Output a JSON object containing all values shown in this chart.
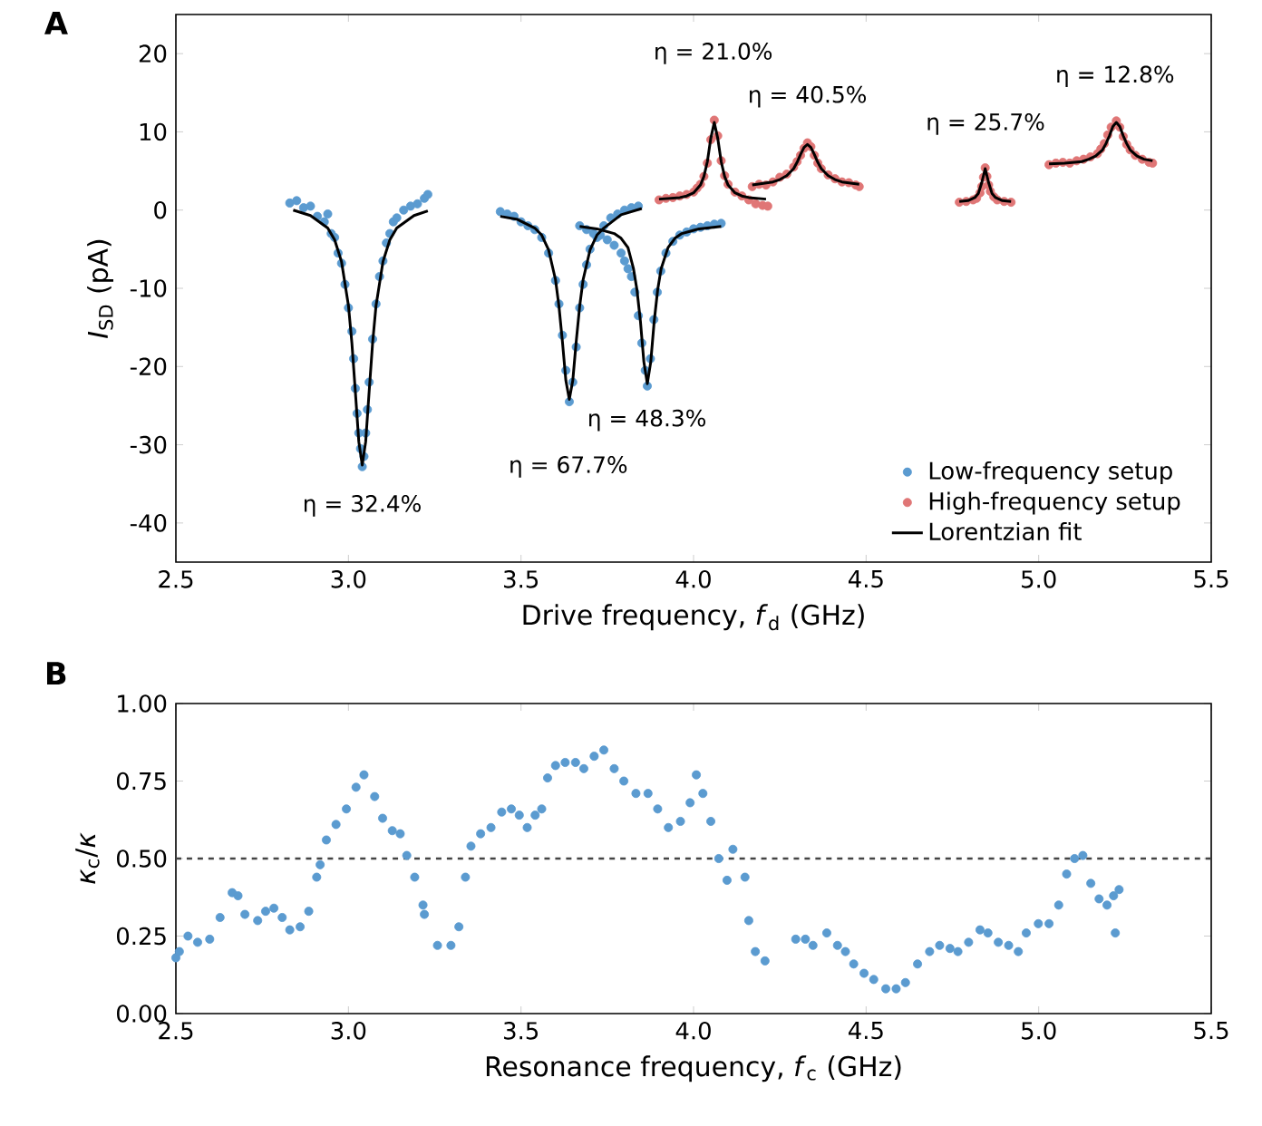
{
  "chart_data": [
    {
      "type": "scatter",
      "title": "A",
      "xlabel": "Drive frequency, *f*$_{d}$ (GHz)",
      "ylabel": "*I*$_{SD}$ (pA)",
      "xlim": [
        2.5,
        5.5
      ],
      "ylim": [
        -45,
        25
      ],
      "xticks": [
        2.5,
        {
          "value": 3,
          "label": "3.0"
        },
        3.5,
        {
          "value": 4,
          "label": "4.0"
        },
        4.5,
        {
          "value": 5,
          "label": "5.0"
        },
        5.5
      ],
      "yticks": [
        -40,
        -30,
        -20,
        -10,
        0,
        10,
        20
      ],
      "legend": "bottom right",
      "series": [
        {
          "name": "Low-frequency setup",
          "type": "scatter",
          "marker": "circle",
          "color": "#5b9bd0",
          "x": [
            2.83,
            2.85,
            2.87,
            2.89,
            2.91,
            2.93,
            2.94,
            2.95,
            2.96,
            2.97,
            2.98,
            2.99,
            3.0,
            3.01,
            3.015,
            3.02,
            3.025,
            3.03,
            3.035,
            3.04,
            3.045,
            3.05,
            3.055,
            3.06,
            3.07,
            3.08,
            3.09,
            3.1,
            3.11,
            3.12,
            3.13,
            3.14,
            3.16,
            3.18,
            3.2,
            3.22,
            3.23,
            3.44,
            3.46,
            3.48,
            3.5,
            3.52,
            3.54,
            3.56,
            3.58,
            3.6,
            3.61,
            3.62,
            3.63,
            3.64,
            3.65,
            3.66,
            3.67,
            3.68,
            3.69,
            3.7,
            3.72,
            3.74,
            3.76,
            3.78,
            3.8,
            3.82,
            3.84,
            3.67,
            3.69,
            3.71,
            3.73,
            3.75,
            3.77,
            3.79,
            3.8,
            3.81,
            3.82,
            3.83,
            3.84,
            3.85,
            3.86,
            3.866,
            3.875,
            3.885,
            3.895,
            3.905,
            3.92,
            3.94,
            3.96,
            3.98,
            4.0,
            4.02,
            4.04,
            4.06,
            4.08
          ],
          "values": [
            0.9,
            1.2,
            0.3,
            0.5,
            -0.8,
            -1.5,
            -0.5,
            -3.0,
            -3.5,
            -5.5,
            -6.8,
            -9.5,
            -12.5,
            -15.5,
            -19.0,
            -22.8,
            -26.0,
            -28.5,
            -30.5,
            -32.8,
            -31.5,
            -28.5,
            -25.5,
            -22.0,
            -16.5,
            -12.0,
            -8.5,
            -6.5,
            -4.2,
            -3.0,
            -1.5,
            -1.0,
            0.0,
            0.5,
            0.8,
            1.5,
            2.0,
            -0.2,
            -0.5,
            -0.8,
            -1.5,
            -2.0,
            -2.5,
            -3.5,
            -5.5,
            -9.0,
            -12.0,
            -16.0,
            -20.5,
            -24.5,
            -22.0,
            -17.5,
            -12.5,
            -9.5,
            -7.0,
            -5.0,
            -3.5,
            -2.0,
            -1.0,
            -0.5,
            0.0,
            0.3,
            0.5,
            -2.0,
            -2.5,
            -3.0,
            -3.2,
            -3.8,
            -4.5,
            -5.5,
            -6.5,
            -7.5,
            -8.5,
            -10.5,
            -13.5,
            -17.0,
            -20.5,
            -22.5,
            -19.0,
            -14.0,
            -10.5,
            -7.8,
            -5.5,
            -4.0,
            -3.2,
            -2.8,
            -2.4,
            -2.2,
            -2.0,
            -1.8,
            -1.7
          ]
        },
        {
          "name": "High-frequency setup",
          "type": "scatter",
          "marker": "circle",
          "color": "#e07676",
          "x": [
            3.9,
            3.92,
            3.94,
            3.96,
            3.98,
            4.0,
            4.01,
            4.02,
            4.03,
            4.04,
            4.05,
            4.06,
            4.07,
            4.08,
            4.09,
            4.1,
            4.12,
            4.14,
            4.16,
            4.18,
            4.2,
            4.215,
            4.17,
            4.19,
            4.21,
            4.23,
            4.25,
            4.27,
            4.29,
            4.3,
            4.31,
            4.32,
            4.33,
            4.34,
            4.35,
            4.36,
            4.37,
            4.39,
            4.41,
            4.43,
            4.45,
            4.47,
            4.48,
            4.77,
            4.79,
            4.81,
            4.82,
            4.83,
            4.835,
            4.84,
            4.845,
            4.85,
            4.855,
            4.86,
            4.87,
            4.88,
            4.9,
            4.92,
            5.03,
            5.05,
            5.07,
            5.09,
            5.11,
            5.13,
            5.15,
            5.17,
            5.18,
            5.19,
            5.2,
            5.21,
            5.225,
            5.235,
            5.245,
            5.255,
            5.265,
            5.28,
            5.3,
            5.32,
            5.33
          ],
          "values": [
            1.3,
            1.5,
            1.6,
            1.8,
            2.0,
            2.3,
            2.8,
            3.3,
            4.3,
            6.0,
            9.0,
            11.5,
            9.5,
            6.3,
            4.4,
            3.3,
            2.3,
            1.8,
            1.3,
            0.8,
            0.6,
            0.5,
            3.0,
            3.3,
            3.2,
            3.6,
            4.2,
            4.6,
            5.5,
            6.2,
            7.0,
            7.9,
            8.6,
            8.1,
            7.0,
            6.0,
            5.3,
            4.5,
            4.0,
            3.6,
            3.5,
            3.2,
            3.0,
            1.0,
            1.1,
            1.3,
            1.5,
            2.2,
            3.0,
            4.2,
            5.4,
            4.3,
            3.2,
            2.4,
            1.7,
            1.3,
            1.1,
            1.0,
            5.8,
            6.0,
            6.1,
            6.0,
            6.3,
            6.5,
            6.8,
            7.2,
            7.8,
            8.5,
            9.6,
            10.6,
            11.4,
            10.6,
            9.4,
            8.4,
            7.7,
            7.0,
            6.5,
            6.1,
            6.0
          ]
        },
        {
          "name": "Lorentzian fit",
          "type": "line",
          "color": "#000000",
          "x": [
            2.84,
            2.89,
            2.94,
            2.96,
            2.98,
            3.0,
            3.01,
            3.02,
            3.03,
            3.04,
            3.05,
            3.06,
            3.07,
            3.08,
            3.1,
            3.12,
            3.14,
            3.19,
            3.23
          ],
          "values": [
            0.0,
            -0.7,
            -2.3,
            -3.8,
            -6.6,
            -12.2,
            -17.0,
            -23.2,
            -29.6,
            -32.6,
            -29.6,
            -23.2,
            -17.0,
            -12.2,
            -6.6,
            -3.8,
            -2.3,
            -0.7,
            -0.1
          ]
        },
        {
          "type": "line",
          "color": "#000000",
          "x": [
            3.44,
            3.49,
            3.54,
            3.56,
            3.58,
            3.6,
            3.61,
            3.62,
            3.63,
            3.64,
            3.65,
            3.66,
            3.67,
            3.68,
            3.7,
            3.72,
            3.74,
            3.79,
            3.85
          ],
          "values": [
            -0.8,
            -1.2,
            -2.3,
            -3.2,
            -5.1,
            -8.9,
            -12.3,
            -16.8,
            -21.8,
            -24.2,
            -21.8,
            -16.8,
            -12.3,
            -8.9,
            -5.1,
            -3.2,
            -2.3,
            -0.6,
            0.2
          ]
        },
        {
          "type": "line",
          "color": "#000000",
          "x": [
            3.67,
            3.72,
            3.77,
            3.79,
            3.81,
            3.826,
            3.836,
            3.846,
            3.856,
            3.866,
            3.876,
            3.886,
            3.896,
            3.906,
            3.926,
            3.946,
            3.966,
            4.016,
            4.08
          ],
          "values": [
            -2.1,
            -2.4,
            -3.0,
            -3.6,
            -4.8,
            -7.5,
            -10.2,
            -14.2,
            -19.4,
            -22.2,
            -19.4,
            -14.2,
            -10.2,
            -7.5,
            -4.8,
            -3.6,
            -3.0,
            -2.4,
            -2.1
          ]
        },
        {
          "type": "line",
          "color": "#000000",
          "x": [
            3.9,
            3.96,
            3.98,
            4.0,
            4.02,
            4.03,
            4.04,
            4.05,
            4.06,
            4.07,
            4.08,
            4.09,
            4.1,
            4.12,
            4.14,
            4.16,
            4.21
          ],
          "values": [
            1.4,
            1.6,
            1.8,
            2.2,
            3.2,
            4.3,
            6.2,
            9.2,
            11.2,
            9.2,
            6.2,
            4.3,
            3.2,
            2.2,
            1.8,
            1.6,
            1.4
          ]
        },
        {
          "type": "line",
          "color": "#000000",
          "x": [
            4.17,
            4.23,
            4.25,
            4.27,
            4.29,
            4.3,
            4.31,
            4.32,
            4.33,
            4.34,
            4.35,
            4.36,
            4.37,
            4.39,
            4.41,
            4.43,
            4.48
          ],
          "values": [
            3.2,
            3.6,
            3.9,
            4.4,
            5.3,
            6.1,
            7.1,
            8.0,
            8.4,
            8.0,
            7.1,
            6.1,
            5.3,
            4.4,
            3.9,
            3.6,
            3.3
          ]
        },
        {
          "type": "line",
          "color": "#000000",
          "x": [
            4.77,
            4.795,
            4.815,
            4.825,
            4.835,
            4.845,
            4.855,
            4.865,
            4.875,
            4.895,
            4.92
          ],
          "values": [
            1.1,
            1.2,
            1.6,
            2.1,
            3.5,
            5.3,
            3.5,
            2.1,
            1.6,
            1.2,
            1.1
          ]
        },
        {
          "type": "line",
          "color": "#000000",
          "x": [
            5.03,
            5.075,
            5.125,
            5.145,
            5.165,
            5.185,
            5.195,
            5.205,
            5.215,
            5.225,
            5.235,
            5.245,
            5.255,
            5.265,
            5.285,
            5.305,
            5.33
          ],
          "values": [
            5.9,
            6.0,
            6.2,
            6.5,
            6.9,
            7.7,
            8.5,
            9.5,
            10.7,
            11.2,
            10.7,
            9.5,
            8.5,
            7.7,
            6.9,
            6.5,
            6.3
          ]
        }
      ],
      "annotations": [
        "η = 32.4%",
        "η = 67.7%",
        "η = 48.3%",
        "η = 21.0%",
        "η = 40.5%",
        "η = 25.7%",
        "η = 12.8%"
      ]
    },
    {
      "type": "scatter",
      "title": "B",
      "xlabel": "Resonance frequency, *f*$_{c}$ (GHz)",
      "ylabel": "*κ*$_{c}$/*κ*",
      "xlim": [
        2.5,
        5.5
      ],
      "ylim": [
        0,
        1
      ],
      "xticks": [
        2.5,
        {
          "value": 3,
          "label": "3.0"
        },
        3.5,
        {
          "value": 4,
          "label": "4.0"
        },
        4.5,
        {
          "value": 5,
          "label": "5.0"
        },
        5.5
      ],
      "yticks": [
        {
          "value": 0,
          "label": "0.00"
        },
        0.25,
        {
          "value": 0.5,
          "label": "0.50"
        },
        0.75,
        {
          "value": 1,
          "label": "1.00"
        }
      ],
      "marker": "circle",
      "ref_lines": [
        {
          "axis": "y",
          "value": 0.5,
          "color": "#444444",
          "line_style": "dashed"
        }
      ],
      "series": [
        {
          "color": "#5b9bd0",
          "x": [
            2.5,
            2.51,
            2.535,
            2.563,
            2.598,
            2.628,
            2.663,
            2.68,
            2.7,
            2.737,
            2.76,
            2.784,
            2.808,
            2.83,
            2.86,
            2.885,
            2.908,
            2.918,
            2.936,
            2.964,
            2.994,
            3.022,
            3.045,
            3.076,
            3.099,
            3.127,
            3.15,
            3.169,
            3.192,
            3.216,
            3.22,
            3.258,
            3.297,
            3.32,
            3.339,
            3.355,
            3.383,
            3.413,
            3.444,
            3.472,
            3.495,
            3.518,
            3.541,
            3.56,
            3.577,
            3.6,
            3.628,
            3.658,
            3.682,
            3.712,
            3.74,
            3.77,
            3.798,
            3.833,
            3.868,
            3.896,
            3.927,
            3.962,
            3.99,
            4.008,
            4.027,
            4.05,
            4.073,
            4.097,
            4.114,
            4.149,
            4.16,
            4.179,
            4.207,
            4.296,
            4.324,
            4.346,
            4.386,
            4.417,
            4.44,
            4.464,
            4.494,
            4.522,
            4.557,
            4.587,
            4.614,
            4.649,
            4.684,
            4.713,
            4.743,
            4.766,
            4.797,
            4.83,
            4.853,
            4.883,
            4.913,
            4.941,
            4.964,
            4.999,
            5.03,
            5.058,
            5.081,
            5.104,
            5.128,
            5.151,
            5.175,
            5.198,
            5.217,
            5.222,
            5.233
          ],
          "values": [
            0.18,
            0.2,
            0.25,
            0.23,
            0.24,
            0.31,
            0.39,
            0.38,
            0.32,
            0.3,
            0.33,
            0.34,
            0.31,
            0.27,
            0.28,
            0.33,
            0.44,
            0.48,
            0.56,
            0.61,
            0.66,
            0.73,
            0.77,
            0.7,
            0.63,
            0.59,
            0.58,
            0.51,
            0.44,
            0.35,
            0.32,
            0.22,
            0.22,
            0.28,
            0.44,
            0.54,
            0.58,
            0.6,
            0.65,
            0.66,
            0.64,
            0.6,
            0.64,
            0.66,
            0.76,
            0.8,
            0.81,
            0.81,
            0.79,
            0.83,
            0.85,
            0.79,
            0.75,
            0.71,
            0.71,
            0.66,
            0.6,
            0.62,
            0.68,
            0.77,
            0.71,
            0.62,
            0.5,
            0.43,
            0.53,
            0.44,
            0.3,
            0.2,
            0.17,
            0.24,
            0.24,
            0.22,
            0.26,
            0.22,
            0.2,
            0.16,
            0.13,
            0.11,
            0.08,
            0.08,
            0.1,
            0.16,
            0.2,
            0.22,
            0.21,
            0.2,
            0.23,
            0.27,
            0.26,
            0.23,
            0.22,
            0.2,
            0.26,
            0.29,
            0.29,
            0.35,
            0.45,
            0.5,
            0.51,
            0.42,
            0.37,
            0.35,
            0.38,
            0.26,
            0.4
          ]
        }
      ]
    }
  ]
}
